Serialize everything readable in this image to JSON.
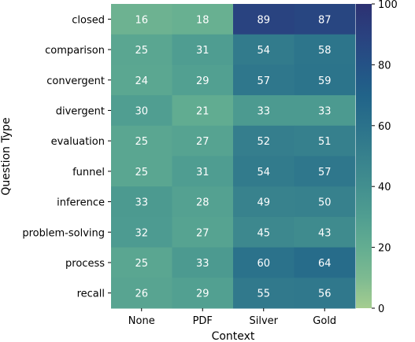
{
  "chart_data": {
    "type": "heatmap",
    "xlabel": "Context",
    "ylabel": "Question Type",
    "x_categories": [
      "None",
      "PDF",
      "Silver",
      "Gold"
    ],
    "y_categories": [
      "closed",
      "comparison",
      "convergent",
      "divergent",
      "evaluation",
      "funnel",
      "inference",
      "problem-solving",
      "process",
      "recall"
    ],
    "values": [
      [
        16,
        18,
        89,
        87
      ],
      [
        25,
        31,
        54,
        58
      ],
      [
        24,
        29,
        57,
        59
      ],
      [
        30,
        21,
        33,
        33
      ],
      [
        25,
        27,
        52,
        51
      ],
      [
        25,
        31,
        54,
        57
      ],
      [
        33,
        28,
        49,
        50
      ],
      [
        32,
        27,
        45,
        43
      ],
      [
        25,
        33,
        60,
        64
      ],
      [
        26,
        29,
        55,
        56
      ]
    ],
    "colorbar": {
      "range": [
        0,
        100
      ],
      "ticks": [
        0,
        20,
        40,
        60,
        80,
        100
      ],
      "colormap": "crest",
      "low_color": "#a5cd90",
      "high_color": "#2c3172"
    }
  }
}
